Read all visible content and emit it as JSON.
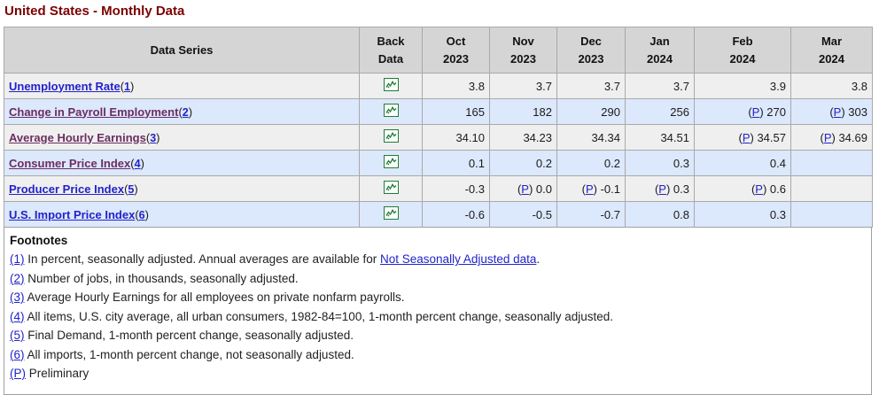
{
  "page": {
    "title": "United States - Monthly Data"
  },
  "colors": {
    "title_maroon": "#7B0000",
    "link_blue": "#2222CC",
    "link_visited_purple": "#6B2D62",
    "icon_green": "#1E7E34",
    "header_bg": "#D5D5D5",
    "row_gray": "#EFEFEF",
    "row_blue": "#DCE8FB",
    "border_gray": "#A9A9A9"
  },
  "table": {
    "header_data_series": "Data Series",
    "header_back_data": "Back\nData",
    "months": [
      "Oct\n2023",
      "Nov\n2023",
      "Dec\n2023",
      "Jan\n2024",
      "Feb\n2024",
      "Mar\n2024"
    ],
    "back_data_icon": "sparkline-chart-icon",
    "rows": [
      {
        "name": "Unemployment Rate",
        "footnote": "1",
        "visited": false,
        "values": [
          {
            "text": "3.8",
            "prelim": false
          },
          {
            "text": "3.7",
            "prelim": false
          },
          {
            "text": "3.7",
            "prelim": false
          },
          {
            "text": "3.7",
            "prelim": false
          },
          {
            "text": "3.9",
            "prelim": false
          },
          {
            "text": "3.8",
            "prelim": false
          }
        ]
      },
      {
        "name": "Change in Payroll Employment",
        "footnote": "2",
        "visited": true,
        "values": [
          {
            "text": "165",
            "prelim": false
          },
          {
            "text": "182",
            "prelim": false
          },
          {
            "text": "290",
            "prelim": false
          },
          {
            "text": "256",
            "prelim": false
          },
          {
            "text": "270",
            "prelim": true
          },
          {
            "text": "303",
            "prelim": true
          }
        ]
      },
      {
        "name": "Average Hourly Earnings",
        "footnote": "3",
        "visited": true,
        "values": [
          {
            "text": "34.10",
            "prelim": false
          },
          {
            "text": "34.23",
            "prelim": false
          },
          {
            "text": "34.34",
            "prelim": false
          },
          {
            "text": "34.51",
            "prelim": false
          },
          {
            "text": "34.57",
            "prelim": true
          },
          {
            "text": "34.69",
            "prelim": true
          }
        ]
      },
      {
        "name": "Consumer Price Index",
        "footnote": "4",
        "visited": true,
        "values": [
          {
            "text": "0.1",
            "prelim": false
          },
          {
            "text": "0.2",
            "prelim": false
          },
          {
            "text": "0.2",
            "prelim": false
          },
          {
            "text": "0.3",
            "prelim": false
          },
          {
            "text": "0.4",
            "prelim": false
          },
          {
            "text": "",
            "prelim": false
          }
        ]
      },
      {
        "name": "Producer Price Index",
        "footnote": "5",
        "visited": false,
        "values": [
          {
            "text": "-0.3",
            "prelim": false
          },
          {
            "text": "0.0",
            "prelim": true
          },
          {
            "text": "-0.1",
            "prelim": true
          },
          {
            "text": "0.3",
            "prelim": true
          },
          {
            "text": "0.6",
            "prelim": true
          },
          {
            "text": "",
            "prelim": false
          }
        ]
      },
      {
        "name": "U.S. Import Price Index",
        "footnote": "6",
        "visited": false,
        "values": [
          {
            "text": "-0.6",
            "prelim": false
          },
          {
            "text": "-0.5",
            "prelim": false
          },
          {
            "text": "-0.7",
            "prelim": false
          },
          {
            "text": "0.8",
            "prelim": false
          },
          {
            "text": "0.3",
            "prelim": false
          },
          {
            "text": "",
            "prelim": false
          }
        ]
      }
    ]
  },
  "footnotes": {
    "heading": "Footnotes",
    "items": [
      {
        "marker": "(1)",
        "text": "In percent, seasonally adjusted. Annual averages are available for ",
        "link": "Not Seasonally Adjusted data",
        "suffix": "."
      },
      {
        "marker": "(2)",
        "text": "Number of jobs, in thousands, seasonally adjusted.",
        "link": "",
        "suffix": ""
      },
      {
        "marker": "(3)",
        "text": "Average Hourly Earnings for all employees on private nonfarm payrolls.",
        "link": "",
        "suffix": ""
      },
      {
        "marker": "(4)",
        "text": "All items, U.S. city average, all urban consumers, 1982-84=100, 1-month percent change, seasonally adjusted.",
        "link": "",
        "suffix": ""
      },
      {
        "marker": "(5)",
        "text": "Final Demand, 1-month percent change, seasonally adjusted.",
        "link": "",
        "suffix": ""
      },
      {
        "marker": "(6)",
        "text": "All imports, 1-month percent change, not seasonally adjusted.",
        "link": "",
        "suffix": ""
      },
      {
        "marker": "(P)",
        "text": "Preliminary",
        "link": "",
        "suffix": ""
      }
    ]
  }
}
